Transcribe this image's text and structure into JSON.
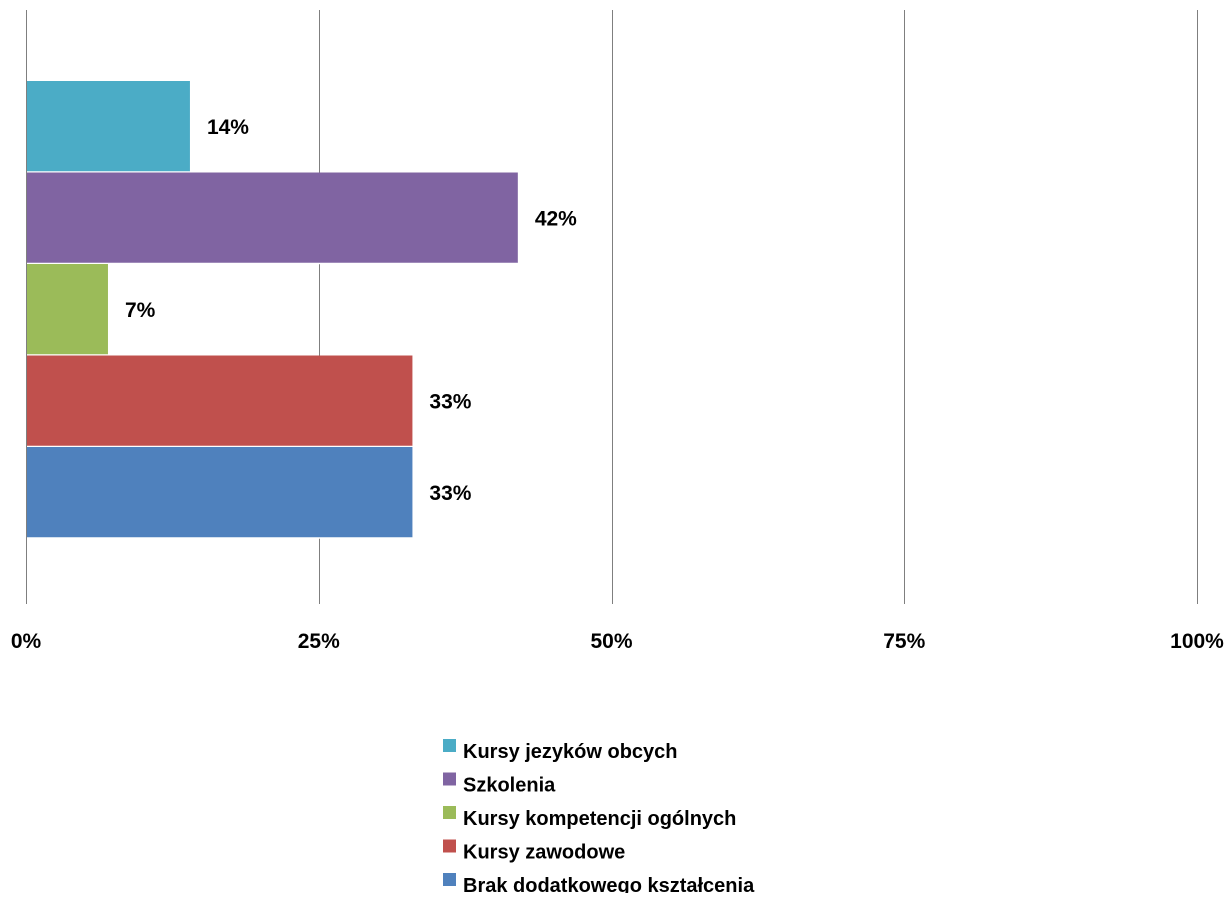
{
  "chart_data": {
    "type": "bar",
    "orientation": "horizontal",
    "xlim": [
      0,
      100
    ],
    "x_ticks": [
      "0%",
      "25%",
      "50%",
      "75%",
      "100%"
    ],
    "x_tick_values": [
      0,
      25,
      50,
      75,
      100
    ],
    "grid": true,
    "legend_position": "bottom",
    "series": [
      {
        "name": "Kursy jezyków obcych",
        "value": 14,
        "label": "14%",
        "color": "#4bacc6"
      },
      {
        "name": "Szkolenia",
        "value": 42,
        "label": "42%",
        "color": "#8064a2"
      },
      {
        "name": "Kursy kompetencji ogólnych",
        "value": 7,
        "label": "7%",
        "color": "#9bbb59"
      },
      {
        "name": "Kursy zawodowe",
        "value": 33,
        "label": "33%",
        "color": "#c0504d"
      },
      {
        "name": "Brak dodatkowego kształcenia",
        "value": 33,
        "label": "33%",
        "color": "#4f81bd"
      }
    ],
    "gridline_color": "#7f7f7f"
  }
}
